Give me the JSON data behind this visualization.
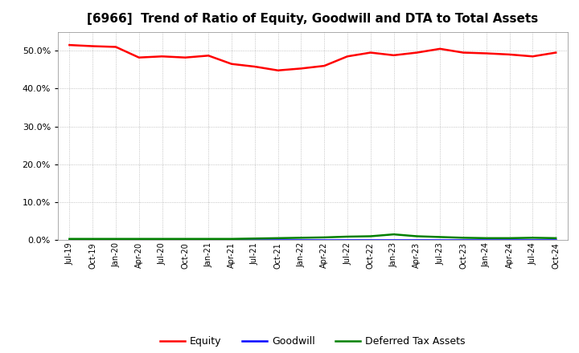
{
  "title": "[6966]  Trend of Ratio of Equity, Goodwill and DTA to Total Assets",
  "title_fontsize": 11,
  "background_color": "#ffffff",
  "plot_background_color": "#ffffff",
  "grid_color": "#aaaaaa",
  "x_labels": [
    "Jul-19",
    "Oct-19",
    "Jan-20",
    "Apr-20",
    "Jul-20",
    "Oct-20",
    "Jan-21",
    "Apr-21",
    "Jul-21",
    "Oct-21",
    "Jan-22",
    "Apr-22",
    "Jul-22",
    "Oct-22",
    "Jan-23",
    "Apr-23",
    "Jul-23",
    "Oct-23",
    "Jan-24",
    "Apr-24",
    "Jul-24",
    "Oct-24"
  ],
  "equity": [
    51.5,
    51.2,
    51.0,
    48.2,
    48.5,
    48.2,
    48.7,
    46.5,
    45.8,
    44.8,
    45.3,
    46.0,
    48.5,
    49.5,
    48.8,
    49.5,
    50.5,
    49.5,
    49.3,
    49.0,
    48.5,
    49.5
  ],
  "goodwill": [
    0.05,
    0.05,
    0.05,
    0.05,
    0.05,
    0.05,
    0.05,
    0.05,
    0.05,
    0.05,
    0.05,
    0.05,
    0.05,
    0.05,
    0.05,
    0.05,
    0.05,
    0.05,
    0.05,
    0.05,
    0.05,
    0.05
  ],
  "dta": [
    0.3,
    0.3,
    0.3,
    0.3,
    0.3,
    0.3,
    0.3,
    0.3,
    0.4,
    0.5,
    0.6,
    0.7,
    0.9,
    1.0,
    1.5,
    1.0,
    0.8,
    0.6,
    0.5,
    0.5,
    0.6,
    0.5
  ],
  "equity_color": "#ff0000",
  "goodwill_color": "#0000ff",
  "dta_color": "#008000",
  "ylim": [
    0,
    55
  ],
  "yticks": [
    0,
    10,
    20,
    30,
    40,
    50
  ],
  "legend_labels": [
    "Equity",
    "Goodwill",
    "Deferred Tax Assets"
  ],
  "linewidth": 1.8
}
